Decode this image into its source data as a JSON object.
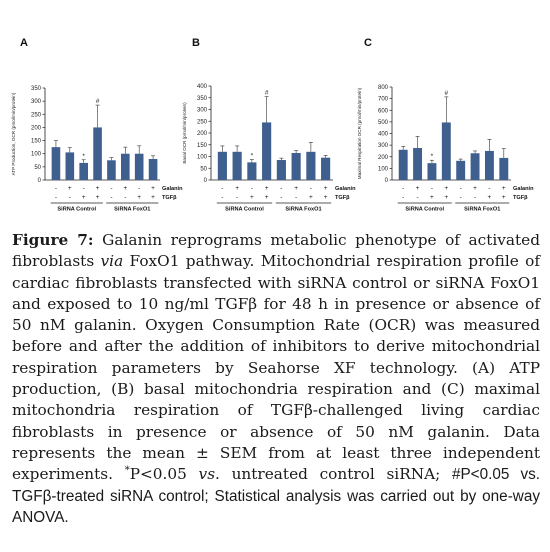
{
  "chart_data": [
    {
      "type": "bar",
      "panel": "A",
      "ylabel": "ATP Production, OCR (pmol/min/protein)",
      "ylim": [
        0,
        350
      ],
      "yticks": [
        0,
        50,
        100,
        150,
        200,
        250,
        300,
        350
      ],
      "values": [
        125,
        105,
        65,
        200,
        75,
        100,
        100,
        80
      ],
      "errors": [
        25,
        18,
        12,
        85,
        10,
        25,
        30,
        12
      ],
      "markers": [
        "",
        "",
        "*",
        "#",
        "",
        "",
        "",
        ""
      ],
      "bar_color": "#3f5f8f"
    },
    {
      "type": "bar",
      "panel": "B",
      "ylabel": "Basal OCR (pmol/min/protein)",
      "ylim": [
        0,
        400
      ],
      "yticks": [
        0,
        50,
        100,
        150,
        200,
        250,
        300,
        350,
        400
      ],
      "values": [
        120,
        120,
        75,
        245,
        85,
        115,
        120,
        95
      ],
      "errors": [
        25,
        25,
        12,
        110,
        8,
        10,
        40,
        10
      ],
      "markers": [
        "",
        "",
        "*",
        "#",
        "",
        "",
        "",
        ""
      ],
      "bar_color": "#3f5f8f"
    },
    {
      "type": "bar",
      "panel": "C",
      "ylabel": "Maximal Respiration OCR (pmol/min/protein)",
      "ylim": [
        0,
        800
      ],
      "yticks": [
        0,
        100,
        200,
        300,
        400,
        500,
        600,
        700,
        800
      ],
      "values": [
        260,
        275,
        145,
        495,
        165,
        230,
        250,
        190
      ],
      "errors": [
        30,
        100,
        25,
        220,
        15,
        20,
        100,
        80
      ],
      "markers": [
        "",
        "",
        "*",
        "#",
        "",
        "",
        "",
        ""
      ],
      "bar_color": "#3f5f8f"
    }
  ],
  "conditions": {
    "galanin": [
      "-",
      "+",
      "-",
      "+",
      "-",
      "+",
      "-",
      "+"
    ],
    "galanin_label": "Galanin",
    "tgfb": [
      "-",
      "-",
      "+",
      "+",
      "-",
      "-",
      "+",
      "+"
    ],
    "tgfb_label": "TGFβ"
  },
  "groups": [
    "SiRNA Control",
    "SiRNA FoxO1"
  ],
  "caption": {
    "label": "Figure 7:",
    "p1": " Galanin reprograms metabolic phenotype of activated fibroblasts ",
    "via1": "via",
    "p2": " FoxO1 pathway. Mitochondrial respiration profile of cardiac fibroblasts transfected with siRNA control or siRNA FoxO1 and exposed to 10 ng/ml TGFβ for 48 h in presence or absence of 50 nM galanin. Oxygen Consumption Rate (OCR) was measured before and after the addition of inhibitors to derive mitochondrial respiration parameters by Seahorse XF technology. (A) ATP production, (B) basal mitochondria respiration and (C) maximal mitochondria respiration of TGFβ-challenged living cardiac fibroblasts in presence or absence of 50 nM galanin. Data represents the mean ± SEM from at least three independent experiments. ",
    "star": "*",
    "p3": "P<0.05 ",
    "vs1": "vs.",
    "p4": " untreated control siRNA; ",
    "p5": "#P<0.05 vs. TGFβ-treated siRNA control; Statistical analysis was carried out by one-way ANOVA."
  }
}
